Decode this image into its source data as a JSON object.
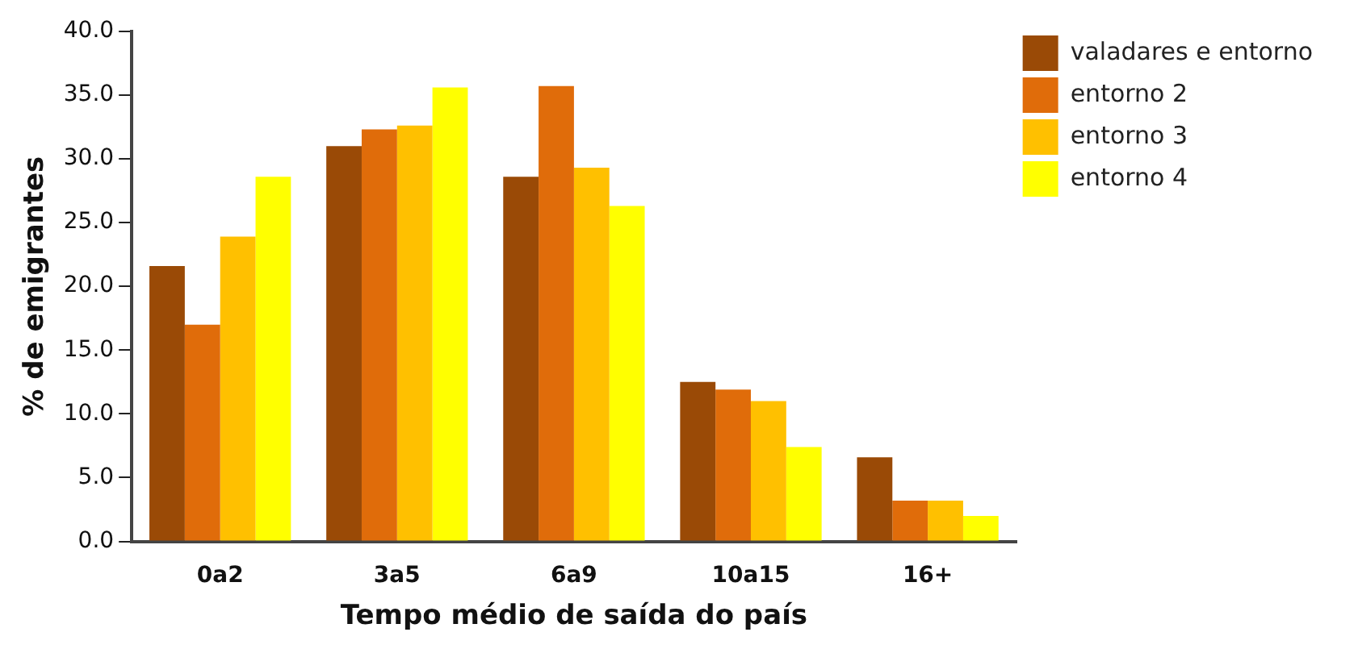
{
  "chart_data": {
    "type": "bar",
    "xlabel": "Tempo médio de saída do país",
    "ylabel": "% de emigrantes",
    "categories": [
      "0a2",
      "3a5",
      "6a9",
      "10a15",
      "16+"
    ],
    "series": [
      {
        "name": "valadares e entorno",
        "color": "#9a4a06",
        "values": [
          21.6,
          31.0,
          28.6,
          12.5,
          6.6
        ]
      },
      {
        "name": "entorno 2",
        "color": "#e06c0a",
        "values": [
          17.0,
          32.3,
          35.7,
          11.9,
          3.2
        ]
      },
      {
        "name": "entorno 3",
        "color": "#ffc000",
        "values": [
          23.9,
          32.6,
          29.3,
          11.0,
          3.2
        ]
      },
      {
        "name": "entorno 4",
        "color": "#ffff00",
        "values": [
          28.6,
          35.6,
          26.3,
          7.4,
          2.0
        ]
      }
    ],
    "ylim": [
      0,
      40
    ],
    "yticks": [
      {
        "value": 0,
        "label": "0.0"
      },
      {
        "value": 5,
        "label": "5.0"
      },
      {
        "value": 10,
        "label": "10.0"
      },
      {
        "value": 15,
        "label": "15.0"
      },
      {
        "value": 20,
        "label": "20.0"
      },
      {
        "value": 25,
        "label": "25.0"
      },
      {
        "value": 30,
        "label": "30.0"
      },
      {
        "value": 35,
        "label": "35.0"
      },
      {
        "value": 40,
        "label": "40.0"
      }
    ],
    "grid": false,
    "legend": "top right"
  }
}
